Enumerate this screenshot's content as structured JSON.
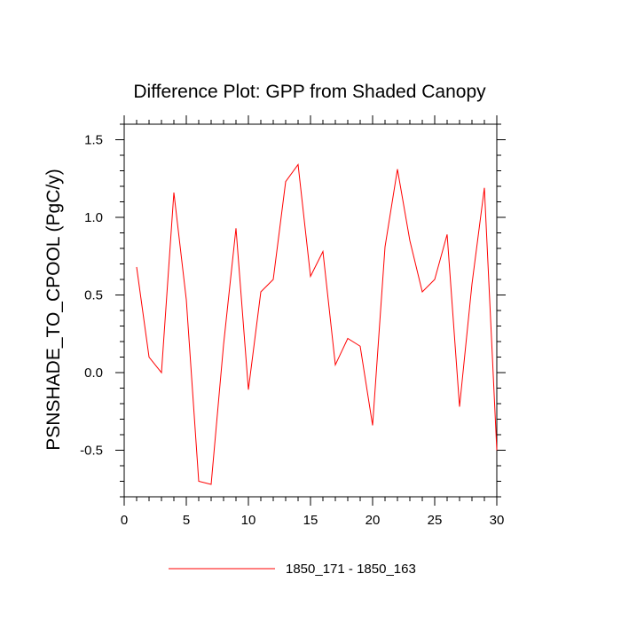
{
  "chart_data": {
    "type": "line",
    "title": "Difference Plot: GPP from Shaded Canopy",
    "xlabel": "",
    "ylabel": "PSNSHADE_TO_CPOOL  (PgC/y)",
    "xlim": [
      0,
      30
    ],
    "ylim": [
      -0.8,
      1.6
    ],
    "x_ticks": [
      0,
      5,
      10,
      15,
      20,
      25,
      30
    ],
    "y_ticks": [
      -0.5,
      0.0,
      0.5,
      1.0,
      1.5
    ],
    "x_tick_labels": [
      "0",
      "5",
      "10",
      "15",
      "20",
      "25",
      "30"
    ],
    "y_tick_labels": [
      "-0.5",
      "0.0",
      "0.5",
      "1.0",
      "1.5"
    ],
    "grid": false,
    "legend_position": "bottom-center",
    "series": [
      {
        "name": "1850_171 - 1850_163",
        "color": "#ff0000",
        "x": [
          1,
          2,
          3,
          4,
          5,
          6,
          7,
          8,
          9,
          10,
          11,
          12,
          13,
          14,
          15,
          16,
          17,
          18,
          19,
          20,
          21,
          22,
          23,
          24,
          25,
          26,
          27,
          28,
          29,
          30
        ],
        "values": [
          0.68,
          0.1,
          0.0,
          1.16,
          0.47,
          -0.7,
          -0.72,
          0.18,
          0.93,
          -0.11,
          0.52,
          0.6,
          1.23,
          1.34,
          0.62,
          0.78,
          0.05,
          0.22,
          0.17,
          -0.34,
          0.81,
          1.31,
          0.85,
          0.52,
          0.6,
          0.89,
          -0.22,
          0.57,
          1.19,
          -0.5
        ]
      }
    ]
  }
}
